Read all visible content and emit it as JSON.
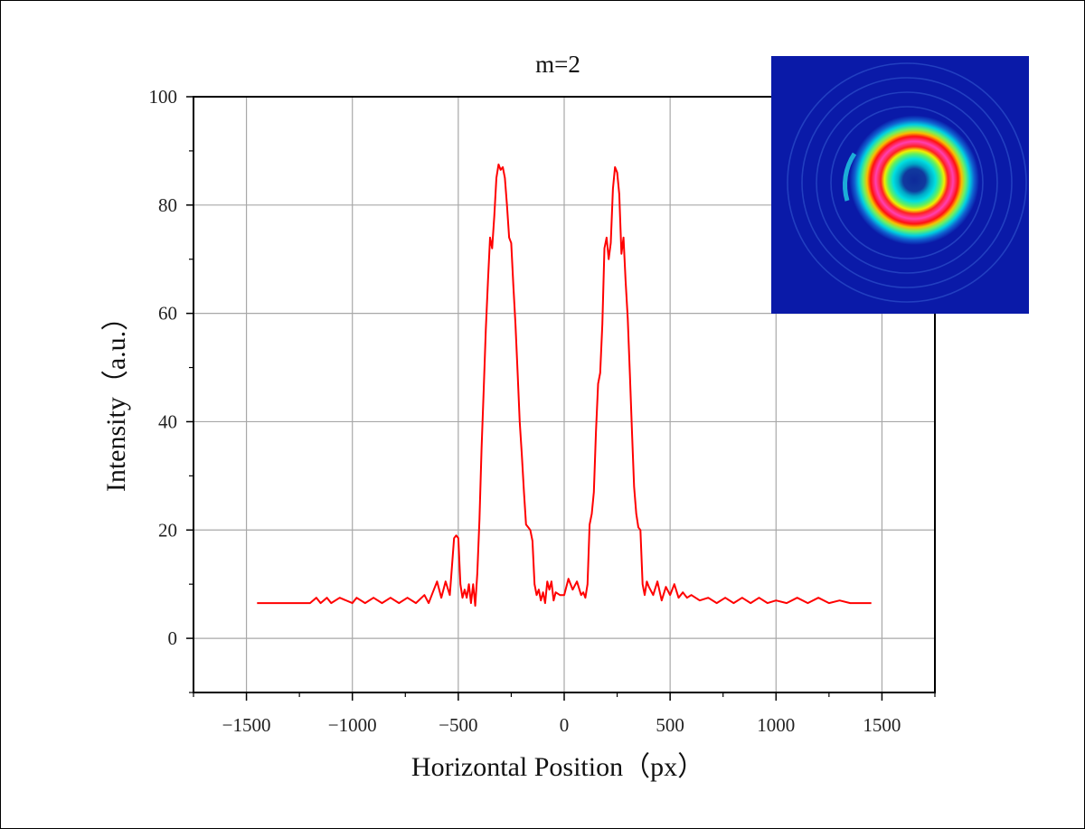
{
  "chart_data": {
    "type": "line",
    "title": "m=2",
    "xlabel": "Horizontal Position（px）",
    "ylabel": "Intensity（a.u.）",
    "xlim": [
      -1750,
      1750
    ],
    "ylim": [
      -10,
      100
    ],
    "xticks": [
      -1500,
      -1000,
      -500,
      0,
      500,
      1000,
      1500
    ],
    "xtick_labels": [
      "−1500",
      "−1000",
      "−500",
      "0",
      "500",
      "1000",
      "1500"
    ],
    "yticks": [
      0,
      20,
      40,
      60,
      80,
      100
    ],
    "ytick_labels": [
      "0",
      "20",
      "40",
      "60",
      "80",
      "100"
    ],
    "grid": true,
    "line_color": "#ff0000",
    "series": [
      {
        "x": [
          -1450,
          -1400,
          -1300,
          -1200,
          -1170,
          -1150,
          -1120,
          -1100,
          -1060,
          -1000,
          -980,
          -940,
          -900,
          -860,
          -820,
          -780,
          -740,
          -700,
          -660,
          -640,
          -620,
          -600,
          -580,
          -560,
          -540,
          -520,
          -510,
          -500,
          -490,
          -480,
          -470,
          -460,
          -450,
          -440,
          -430,
          -420,
          -410,
          -400,
          -390,
          -380,
          -370,
          -360,
          -350,
          -340,
          -330,
          -320,
          -310,
          -300,
          -290,
          -280,
          -270,
          -260,
          -250,
          -240,
          -230,
          -220,
          -210,
          -200,
          -190,
          -180,
          -170,
          -160,
          -150,
          -140,
          -130,
          -120,
          -110,
          -100,
          -90,
          -80,
          -70,
          -60,
          -50,
          -40,
          -20,
          0,
          20,
          40,
          60,
          80,
          90,
          100,
          110,
          120,
          130,
          140,
          150,
          160,
          170,
          180,
          190,
          200,
          210,
          220,
          230,
          240,
          250,
          260,
          270,
          280,
          290,
          300,
          310,
          320,
          330,
          340,
          350,
          360,
          370,
          380,
          390,
          400,
          420,
          440,
          460,
          480,
          500,
          520,
          540,
          560,
          580,
          600,
          640,
          680,
          720,
          760,
          800,
          840,
          880,
          920,
          960,
          1000,
          1050,
          1100,
          1150,
          1200,
          1250,
          1300,
          1350,
          1400,
          1450
        ],
        "y": [
          6.5,
          6.5,
          6.5,
          6.5,
          7.5,
          6.5,
          7.5,
          6.5,
          7.5,
          6.5,
          7.5,
          6.5,
          7.5,
          6.5,
          7.5,
          6.5,
          7.5,
          6.5,
          8.0,
          6.5,
          8.5,
          10.5,
          7.5,
          10.5,
          8.0,
          18.5,
          19.0,
          18.5,
          10.0,
          7.5,
          9.0,
          7.5,
          10.0,
          6.5,
          10.0,
          6.0,
          12.0,
          22.0,
          35.0,
          46.0,
          57.0,
          66.0,
          74.0,
          72.0,
          78.0,
          85.0,
          87.5,
          86.5,
          87.0,
          85.0,
          80.0,
          74.0,
          73.0,
          65.0,
          58.0,
          49.0,
          40.0,
          34.0,
          27.0,
          21.0,
          20.5,
          20.0,
          18.0,
          10.0,
          8.0,
          9.0,
          7.0,
          8.5,
          6.5,
          10.5,
          9.0,
          10.5,
          7.0,
          8.5,
          8.0,
          8.0,
          11.0,
          9.0,
          10.5,
          8.0,
          8.5,
          7.5,
          10.0,
          21.0,
          23.0,
          27.0,
          38.0,
          47.0,
          49.0,
          58.0,
          72.0,
          74.0,
          70.0,
          73.0,
          83.0,
          87.0,
          86.0,
          82.0,
          71.0,
          74.0,
          66.0,
          59.0,
          49.0,
          38.0,
          28.0,
          23.0,
          20.5,
          20.0,
          10.0,
          8.0,
          10.5,
          9.5,
          8.0,
          10.5,
          7.0,
          9.5,
          8.0,
          10.0,
          7.5,
          8.5,
          7.5,
          8.0,
          7.0,
          7.5,
          6.5,
          7.5,
          6.5,
          7.5,
          6.5,
          7.5,
          6.5,
          7.0,
          6.5,
          7.5,
          6.5,
          7.5,
          6.5,
          7.0,
          6.5,
          6.5,
          6.5
        ]
      }
    ],
    "inset": {
      "type": "image",
      "content": "donut-shaped beam intensity profile",
      "background_color": "#0a1aa8"
    }
  }
}
